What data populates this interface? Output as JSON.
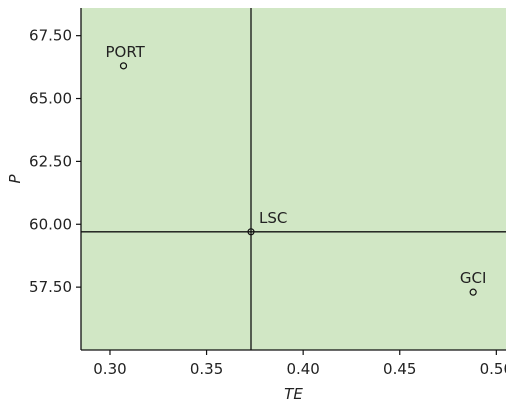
{
  "chart_data": {
    "type": "scatter",
    "xlabel": "TE",
    "ylabel": "P",
    "xlim": [
      0.285,
      0.505
    ],
    "ylim": [
      55.0,
      68.6
    ],
    "x_ticks": [
      "0.30",
      "0.35",
      "0.40",
      "0.45",
      "0.50"
    ],
    "x_tick_values": [
      0.3,
      0.35,
      0.4,
      0.45,
      0.5
    ],
    "y_ticks": [
      "57.50",
      "60.00",
      "62.50",
      "65.00",
      "67.50"
    ],
    "y_tick_values": [
      57.5,
      60.0,
      62.5,
      65.0,
      67.5
    ],
    "points": [
      {
        "label": "PORT",
        "x": 0.307,
        "y": 66.3
      },
      {
        "label": "LSC",
        "x": 0.373,
        "y": 59.7
      },
      {
        "label": "GCI",
        "x": 0.488,
        "y": 57.3
      }
    ],
    "reference_lines": {
      "x": 0.373,
      "y": 59.7
    },
    "grid": false,
    "colors": {
      "plot_background": "#d1e7c5",
      "axis": "#111111",
      "marker": "#111111"
    }
  }
}
